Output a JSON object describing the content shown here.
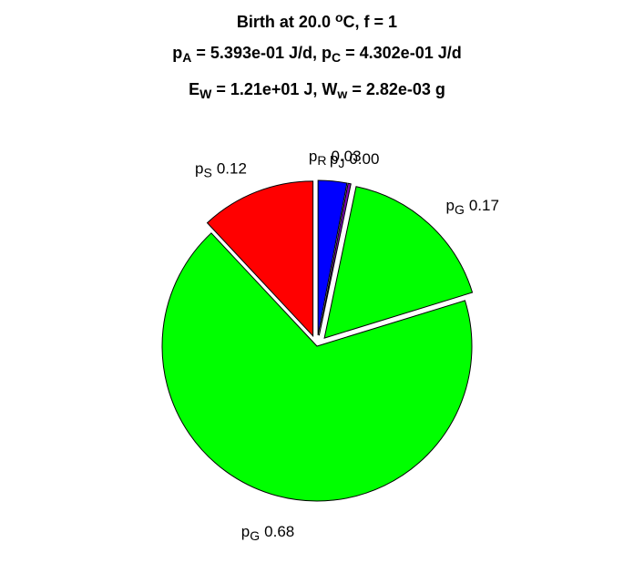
{
  "chart_data": {
    "type": "pie",
    "title": [
      [
        {
          "text": "Birth at 20.0 "
        },
        {
          "text": "o",
          "script": "sup"
        },
        {
          "text": "C, f = 1"
        }
      ],
      [
        {
          "text": "p"
        },
        {
          "text": "A",
          "script": "sub"
        },
        {
          "text": " = 5.393e-01 J/d, p"
        },
        {
          "text": "C",
          "script": "sub"
        },
        {
          "text": " = 4.302e-01 J/d"
        }
      ],
      [
        {
          "text": "E"
        },
        {
          "text": "W",
          "script": "sub"
        },
        {
          "text": " = 1.21e+01 J, W"
        },
        {
          "text": "w",
          "script": "sub"
        },
        {
          "text": " = 2.82e-03 g"
        }
      ]
    ],
    "categories": [
      {
        "symbol": "p",
        "subscript": "R"
      },
      {
        "symbol": "p",
        "subscript": "J"
      },
      {
        "symbol": "p",
        "subscript": "G"
      },
      {
        "symbol": "p",
        "subscript": "G"
      },
      {
        "symbol": "p",
        "subscript": "S"
      }
    ],
    "values": [
      0.03,
      0.003,
      0.17,
      0.68,
      0.12
    ],
    "value_labels": [
      "0.03",
      "0.00",
      "0.17",
      "0.68",
      "0.12"
    ],
    "colors": [
      "#0000ff",
      "#8000c0",
      "#00ff00",
      "#00ff00",
      "#ff0000"
    ],
    "explode": [
      true,
      true,
      true,
      false,
      true
    ]
  }
}
